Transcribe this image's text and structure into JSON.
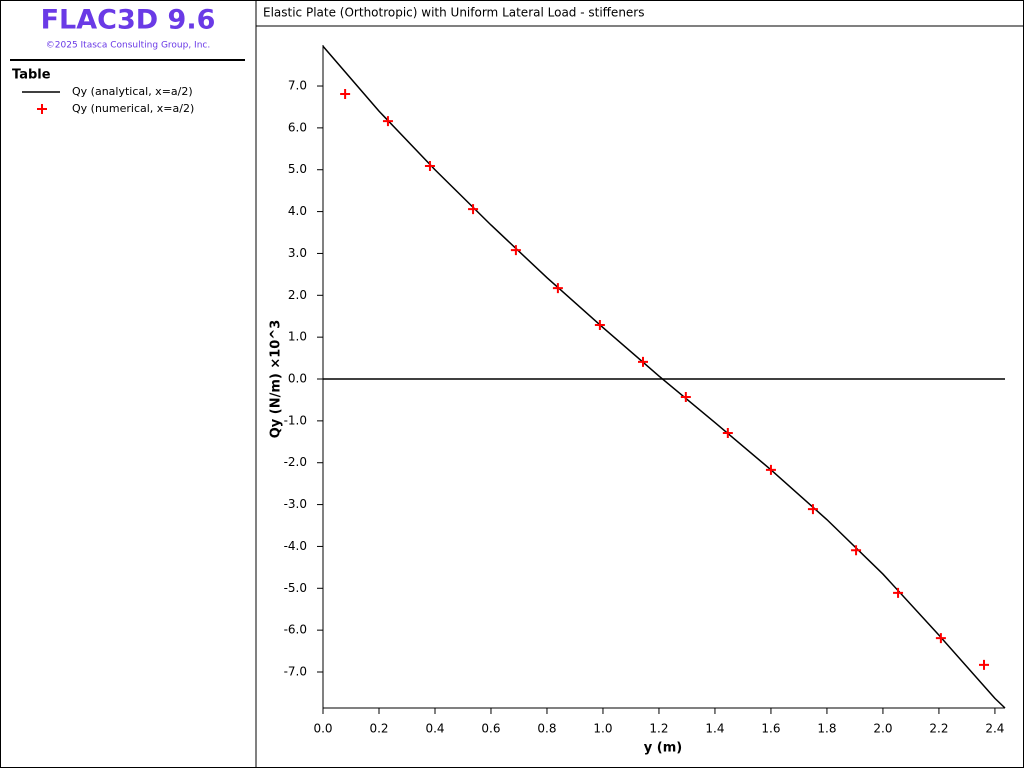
{
  "app": {
    "title": "FLAC3D 9.6",
    "copyright": "©2025 Itasca Consulting Group, Inc."
  },
  "legend_panel": {
    "heading": "Table"
  },
  "chart_data": {
    "type": "line",
    "title": "Elastic Plate (Orthotropic) with Uniform Lateral Load - stiffeners",
    "x_label": "y (m)",
    "y_label": "Qy (N/m) ×10^3",
    "xlim": [
      0,
      2.436
    ],
    "ylim": [
      -7.86,
      7.98
    ],
    "xticks": [
      {
        "value": 0,
        "label": "0.0"
      },
      0.2,
      0.4,
      0.6,
      0.8,
      {
        "value": 1,
        "label": "1.0"
      },
      1.2,
      1.4,
      1.6,
      1.8,
      {
        "value": 2,
        "label": "2.0"
      },
      2.2,
      2.4
    ],
    "yticks": [
      {
        "value": 7,
        "label": "7.0"
      },
      {
        "value": 6,
        "label": "6.0"
      },
      {
        "value": 5,
        "label": "5.0"
      },
      {
        "value": 4,
        "label": "4.0"
      },
      {
        "value": 3,
        "label": "3.0"
      },
      {
        "value": 2,
        "label": "2.0"
      },
      {
        "value": 1,
        "label": "1.0"
      },
      {
        "value": 0,
        "label": "0.0"
      },
      {
        "value": -1,
        "label": "-1.0"
      },
      {
        "value": -2,
        "label": "-2.0"
      },
      {
        "value": -3,
        "label": "-3.0"
      },
      {
        "value": -4,
        "label": "-4.0"
      },
      {
        "value": -5,
        "label": "-5.0"
      },
      {
        "value": -6,
        "label": "-6.0"
      },
      {
        "value": -7,
        "label": "-7.0"
      }
    ],
    "grid": false,
    "zero_line": true,
    "series": [
      {
        "name": "Qy (analytical, x=a/2)",
        "color": "#000000",
        "marker": "line",
        "x": [
          0,
          0.2,
          0.4,
          0.6,
          0.8,
          1.0,
          1.2,
          1.4,
          1.6,
          1.8,
          2.0,
          2.2,
          2.4,
          2.436
        ],
        "values": [
          7.95,
          6.4,
          5.0,
          3.68,
          2.42,
          1.23,
          0.07,
          -1.04,
          -2.17,
          -3.36,
          -4.66,
          -6.12,
          -7.63,
          -7.86
        ]
      },
      {
        "name": "Qy (numerical, x=a/2)",
        "color": "#ff0000",
        "marker": "plus",
        "x": [
          0.079,
          0.232,
          0.382,
          0.536,
          0.689,
          0.839,
          0.989,
          1.143,
          1.296,
          1.446,
          1.6,
          1.75,
          1.904,
          2.054,
          2.207,
          2.361
        ],
        "values": [
          6.81,
          6.16,
          5.09,
          4.06,
          3.08,
          2.17,
          1.29,
          0.41,
          -0.43,
          -1.29,
          -2.17,
          -3.11,
          -4.09,
          -5.11,
          -6.19,
          -6.83
        ]
      }
    ]
  }
}
